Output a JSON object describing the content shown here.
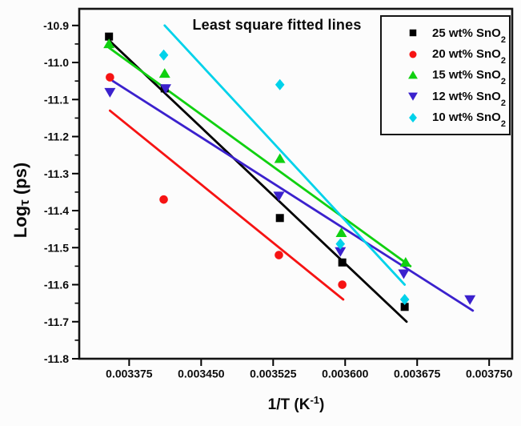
{
  "figure": {
    "background": "#fcfcfc",
    "frame_color": "#141414"
  },
  "labels": {
    "y_pre": "Log",
    "y_tau": "τ",
    "y_post": " (ps)",
    "x_pre": "1/T (K",
    "x_sup": "-1",
    "x_post": ")"
  },
  "chart_data": {
    "type": "scatter",
    "title": "Least square fitted lines",
    "xlabel": "1/T (K⁻¹)",
    "ylabel": "Logτ (ps)",
    "xlim": [
      0.003323,
      0.003774
    ],
    "ylim": [
      -11.8,
      -10.855
    ],
    "grid": false,
    "legend_position": "top-right",
    "x_ticks": [
      0.003375,
      0.00345,
      0.003525,
      0.0036,
      0.003675,
      0.00375
    ],
    "x_tick_labels": [
      "0.003375",
      "0.003450",
      "0.003525",
      "0.003600",
      "0.003675",
      "0.003750"
    ],
    "y_ticks": [
      -10.9,
      -11.0,
      -11.1,
      -11.2,
      -11.3,
      -11.4,
      -11.5,
      -11.6,
      -11.7,
      -11.8
    ],
    "y_tick_labels": [
      "-10.9",
      "-11.0",
      "-11.1",
      "-11.2",
      "-11.3",
      "-11.4",
      "-11.5",
      "-11.6",
      "-11.7",
      "-11.8"
    ],
    "series": [
      {
        "name": "25 wt% SnO2",
        "label_base": "25 wt% SnO",
        "label_sub": "2",
        "color": "#000000",
        "marker": "square",
        "points": [
          [
            0.003354,
            -10.93
          ],
          [
            0.003412,
            -11.07
          ],
          [
            0.003532,
            -11.42
          ],
          [
            0.003597,
            -11.54
          ],
          [
            0.003662,
            -11.66
          ]
        ],
        "fit_line": {
          "x1": 0.003354,
          "y1": -10.94,
          "x2": 0.003664,
          "y2": -11.7
        }
      },
      {
        "name": "20 wt% SnO2",
        "label_base": "20 wt% SnO",
        "label_sub": "2",
        "color": "#f61313",
        "marker": "circle",
        "points": [
          [
            0.003355,
            -11.04
          ],
          [
            0.003411,
            -11.37
          ],
          [
            0.003531,
            -11.52
          ],
          [
            0.003597,
            -11.6
          ]
        ],
        "fit_line": {
          "x1": 0.003355,
          "y1": -11.13,
          "x2": 0.003598,
          "y2": -11.64
        }
      },
      {
        "name": "15 wt% SnO2",
        "label_base": "15 wt% SnO",
        "label_sub": "2",
        "color": "#10d010",
        "marker": "triangle-up",
        "points": [
          [
            0.003354,
            -10.95
          ],
          [
            0.003412,
            -11.03
          ],
          [
            0.003532,
            -11.26
          ],
          [
            0.003596,
            -11.46
          ],
          [
            0.003663,
            -11.54
          ]
        ],
        "fit_line": {
          "x1": 0.003354,
          "y1": -10.96,
          "x2": 0.003668,
          "y2": -11.55
        }
      },
      {
        "name": "12 wt% SnO2",
        "label_base": "12 wt% SnO",
        "label_sub": "2",
        "color": "#3b21cd",
        "marker": "triangle-down",
        "points": [
          [
            0.003355,
            -11.08
          ],
          [
            0.003413,
            -11.07
          ],
          [
            0.003531,
            -11.36
          ],
          [
            0.003595,
            -11.51
          ],
          [
            0.003661,
            -11.57
          ],
          [
            0.00373,
            -11.64
          ]
        ],
        "fit_line": {
          "x1": 0.003358,
          "y1": -11.05,
          "x2": 0.003733,
          "y2": -11.67
        }
      },
      {
        "name": "10 wt% SnO2",
        "label_base": "10 wt% SnO",
        "label_sub": "2",
        "color": "#00d2ea",
        "marker": "diamond",
        "points": [
          [
            0.003411,
            -10.98
          ],
          [
            0.003532,
            -11.06
          ],
          [
            0.003595,
            -11.49
          ],
          [
            0.003662,
            -11.64
          ]
        ],
        "fit_line": {
          "x1": 0.003412,
          "y1": -10.9,
          "x2": 0.003662,
          "y2": -11.6
        }
      }
    ]
  }
}
